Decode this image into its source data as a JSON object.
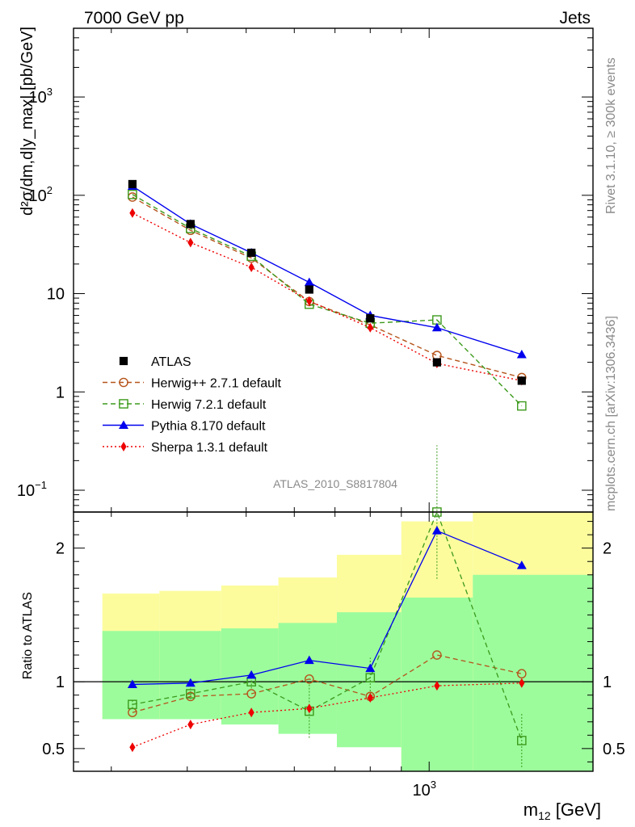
{
  "chart_data": {
    "type": "line",
    "header_left": "7000 GeV pp",
    "header_right": "Jets",
    "side_top": "Rivet 3.1.10, ≥ 300k events",
    "side_bottom": "mcplots.cern.ch [arXiv:1306.3436]",
    "analysis_id": "ATLAS_2010_S8817804",
    "xlabel_main": "m",
    "xlabel_sub": "12",
    "xlabel_unit": " [GeV]",
    "ylabel_main": "d²σ/dm,d|y_max| [pb/GeV]",
    "ylabel_ratio": "Ratio to ATLAS",
    "x_scale": "log",
    "xlim": [
      260,
      1860
    ],
    "x_tick_labels": [
      {
        "value": 1000,
        "base": "10",
        "exp": "3"
      }
    ],
    "ylim_main": [
      0.06,
      5000
    ],
    "y_scale_main": "log",
    "y_tick_labels_main": [
      {
        "value": 0.1,
        "base": "10",
        "exp": "−1"
      },
      {
        "value": 1,
        "base": "1",
        "exp": ""
      },
      {
        "value": 10,
        "base": "10",
        "exp": ""
      },
      {
        "value": 100,
        "base": "10",
        "exp": "2"
      },
      {
        "value": 1000,
        "base": "10",
        "exp": "3"
      }
    ],
    "ylim_ratio": [
      0.33,
      2.27
    ],
    "y_tick_labels_ratio": [
      "0.5",
      "1",
      "2"
    ],
    "y_tick_values_ratio": [
      0.5,
      1,
      2
    ],
    "legend_position": "bottom-left",
    "bins": [
      [
        290,
        360
      ],
      [
        360,
        455
      ],
      [
        455,
        565
      ],
      [
        565,
        705
      ],
      [
        705,
        900
      ],
      [
        900,
        1180
      ],
      [
        1180,
        1860
      ]
    ],
    "x": [
      325,
      405,
      510,
      635,
      800,
      1030,
      1420
    ],
    "band_outer": [
      [
        0.72,
        1.66
      ],
      [
        0.72,
        1.68
      ],
      [
        0.72,
        1.72
      ],
      [
        0.72,
        1.78
      ],
      [
        0.72,
        1.95
      ],
      [
        0.33,
        2.2
      ],
      [
        0.33,
        2.27
      ]
    ],
    "band_inner": [
      [
        0.72,
        1.38
      ],
      [
        0.72,
        1.38
      ],
      [
        0.68,
        1.4
      ],
      [
        0.61,
        1.44
      ],
      [
        0.51,
        1.52
      ],
      [
        0.33,
        1.63
      ],
      [
        0.33,
        1.8
      ]
    ],
    "series": [
      {
        "name": "ATLAS",
        "color": "#000000",
        "marker": "square-filled",
        "line": "none",
        "values": [
          130,
          51,
          26,
          11,
          5.6,
          2.0,
          1.3
        ],
        "ratio": [
          1,
          1,
          1,
          1,
          1,
          1,
          1
        ]
      },
      {
        "name": "Herwig++ 2.7.1 default",
        "color": "#b5541b",
        "marker": "circle-open",
        "line": "dashed",
        "values": [
          96,
          44,
          23,
          8.3,
          4.8,
          2.35,
          1.4
        ],
        "ratio": [
          0.77,
          0.89,
          0.91,
          1.02,
          0.89,
          1.2,
          1.06
        ]
      },
      {
        "name": "Herwig 7.2.1 default",
        "color": "#3c9a1c",
        "marker": "square-open",
        "line": "dashed",
        "values": [
          102,
          46,
          24,
          7.8,
          5.0,
          5.4,
          0.72
        ],
        "ratio": [
          0.83,
          0.91,
          1.0,
          0.78,
          1.03,
          2.27,
          0.56
        ],
        "ratio_err_low": [
          0.03,
          0.04,
          0.05,
          0.2,
          0.15,
          0.5,
          0.2
        ],
        "ratio_err_high": [
          0.03,
          0.04,
          0.05,
          0.2,
          0.15,
          0.5,
          0.2
        ]
      },
      {
        "name": "Pythia 8.170 default",
        "color": "#0000ee",
        "marker": "triangle-filled",
        "line": "solid",
        "values": [
          124,
          51,
          26,
          13,
          6.0,
          4.5,
          2.4
        ],
        "ratio": [
          0.98,
          0.99,
          1.05,
          1.16,
          1.1,
          2.13,
          1.87
        ]
      },
      {
        "name": "Sherpa 1.3.1 default",
        "color": "#ee0000",
        "marker": "diamond-filled",
        "line": "dotted",
        "values": [
          66,
          33,
          18.5,
          8.4,
          4.5,
          1.95,
          1.3
        ],
        "ratio": [
          0.51,
          0.68,
          0.77,
          0.8,
          0.88,
          0.97,
          0.99
        ]
      }
    ]
  }
}
